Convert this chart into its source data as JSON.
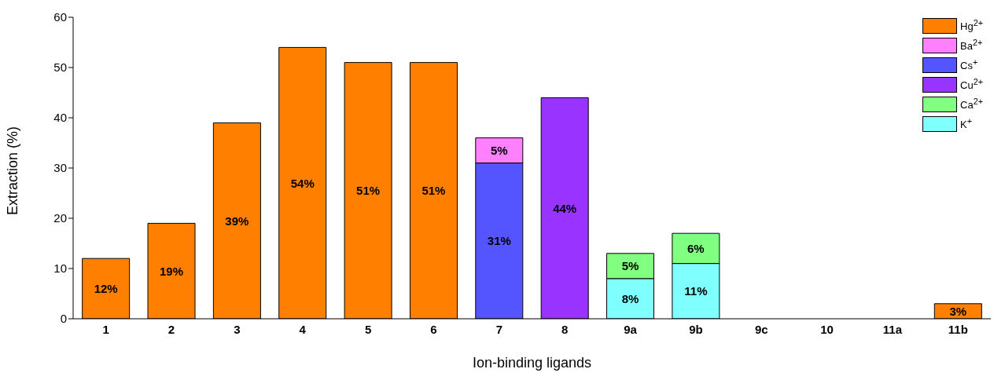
{
  "chart_data": {
    "type": "bar",
    "stacked": true,
    "xlabel": "Ion-binding ligands",
    "ylabel": "Extraction (%)",
    "categories": [
      "1",
      "2",
      "3",
      "4",
      "5",
      "6",
      "7",
      "8",
      "9a",
      "9b",
      "9c",
      "10",
      "11a",
      "11b"
    ],
    "series": [
      {
        "name": "K$^{+}$",
        "color": "#80ffff",
        "values": [
          null,
          null,
          null,
          null,
          null,
          null,
          null,
          null,
          8,
          11,
          null,
          null,
          null,
          null
        ],
        "value_labels": [
          null,
          null,
          null,
          null,
          null,
          null,
          null,
          null,
          "8%",
          "11%",
          null,
          null,
          null,
          null
        ]
      },
      {
        "name": "Ca$^{2+}$",
        "color": "#80ff80",
        "values": [
          null,
          null,
          null,
          null,
          null,
          null,
          null,
          null,
          5,
          6,
          null,
          null,
          null,
          null
        ],
        "value_labels": [
          null,
          null,
          null,
          null,
          null,
          null,
          null,
          null,
          "5%",
          "6%",
          null,
          null,
          null,
          null
        ]
      },
      {
        "name": "Cu$^{2+}$",
        "color": "#9933ff",
        "values": [
          null,
          null,
          null,
          null,
          null,
          null,
          null,
          44,
          null,
          null,
          null,
          null,
          null,
          null
        ],
        "value_labels": [
          null,
          null,
          null,
          null,
          null,
          null,
          null,
          "44%",
          null,
          null,
          null,
          null,
          null,
          null
        ]
      },
      {
        "name": "Cs$^{+}$",
        "color": "#5555ff",
        "values": [
          null,
          null,
          null,
          null,
          null,
          null,
          31,
          null,
          null,
          null,
          null,
          null,
          null,
          null
        ],
        "value_labels": [
          null,
          null,
          null,
          null,
          null,
          null,
          "31%",
          null,
          null,
          null,
          null,
          null,
          null,
          null
        ]
      },
      {
        "name": "Ba$^{2+}$",
        "color": "#ff80ff",
        "values": [
          null,
          null,
          null,
          null,
          null,
          null,
          5,
          null,
          null,
          null,
          null,
          null,
          null,
          null
        ],
        "value_labels": [
          null,
          null,
          null,
          null,
          null,
          null,
          "5%",
          null,
          null,
          null,
          null,
          null,
          null,
          null
        ]
      },
      {
        "name": "Hg$^{2+}$",
        "color": "#ff8000",
        "values": [
          12,
          19,
          39,
          54,
          51,
          51,
          null,
          null,
          null,
          null,
          null,
          null,
          null,
          3
        ],
        "value_labels": [
          "12%",
          "19%",
          "39%",
          "54%",
          "51%",
          "51%",
          null,
          null,
          null,
          null,
          null,
          null,
          null,
          "3%"
        ]
      }
    ],
    "ylim": [
      0,
      60
    ],
    "yticks": [
      0,
      10,
      20,
      30,
      40,
      50,
      60
    ],
    "legend": "top right"
  }
}
